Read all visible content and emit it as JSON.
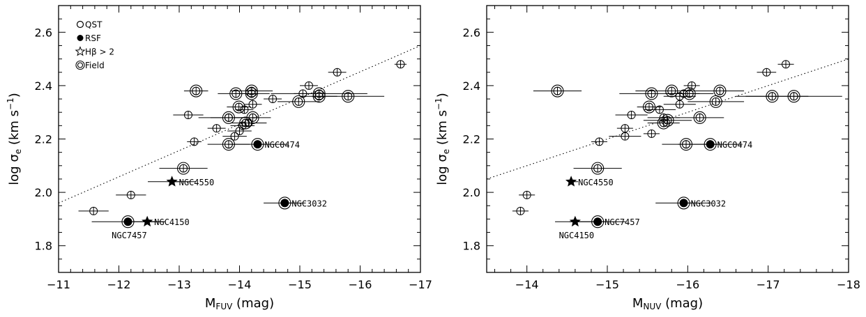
{
  "chart_data": [
    {
      "type": "scatter",
      "xlabel_main": "M",
      "xlabel_sub": "FUV",
      "xlabel_unit": " (mag)",
      "ylabel": "log σ",
      "ylabel_sub": "e",
      "ylabel_unit": " (km s",
      "ylabel_exp": "−1",
      "ylabel_close": ")",
      "xlim": [
        -11,
        -17
      ],
      "ylim": [
        1.7,
        2.7
      ],
      "xticks": [
        -11,
        -12,
        -13,
        -14,
        -15,
        -16,
        -17
      ],
      "xtick_labels": [
        "−11",
        "−12",
        "−13",
        "−14",
        "−15",
        "−16",
        "−17"
      ],
      "yticks": [
        1.8,
        2.0,
        2.2,
        2.4,
        2.6
      ],
      "ytick_labels": [
        "1.8",
        "2.0",
        "2.2",
        "2.4",
        "2.6"
      ],
      "fit_line": [
        [
          -11,
          1.96
        ],
        [
          -17,
          2.55
        ]
      ],
      "legend": [
        {
          "marker": "open",
          "label": "QST"
        },
        {
          "marker": "filled",
          "label": "RSF"
        },
        {
          "marker": "star",
          "label": "Hβ > 2"
        },
        {
          "marker": "double",
          "label": "Field"
        }
      ],
      "points": [
        {
          "x": -11.58,
          "y": 1.93,
          "xerr": 0.25,
          "marker": "cross"
        },
        {
          "x": -12.2,
          "y": 1.99,
          "xerr": 0.25,
          "marker": "cross"
        },
        {
          "x": -13.15,
          "y": 2.29,
          "xerr": 0.25,
          "marker": "cross"
        },
        {
          "x": -13.25,
          "y": 2.19,
          "xerr": 0.12,
          "marker": "cross"
        },
        {
          "x": -13.62,
          "y": 2.24,
          "xerr": 0.15,
          "marker": "cross"
        },
        {
          "x": -13.82,
          "y": 2.28,
          "xerr": 0.5,
          "marker": "cross"
        },
        {
          "x": -13.92,
          "y": 2.21,
          "xerr": 0.2,
          "marker": "cross"
        },
        {
          "x": -14.0,
          "y": 2.23,
          "xerr": 0.2,
          "marker": "cross"
        },
        {
          "x": -14.05,
          "y": 2.25,
          "xerr": 0.2,
          "marker": "cross"
        },
        {
          "x": -14.15,
          "y": 2.26,
          "xerr": 0.3,
          "marker": "cross"
        },
        {
          "x": -14.22,
          "y": 2.33,
          "xerr": 0.15,
          "marker": "cross"
        },
        {
          "x": -14.08,
          "y": 2.31,
          "xerr": 0.15,
          "marker": "cross"
        },
        {
          "x": -14.55,
          "y": 2.35,
          "xerr": 0.15,
          "marker": "cross"
        },
        {
          "x": -15.05,
          "y": 2.37,
          "xerr": 0.15,
          "marker": "cross"
        },
        {
          "x": -15.15,
          "y": 2.4,
          "xerr": 0.15,
          "marker": "cross"
        },
        {
          "x": -15.62,
          "y": 2.45,
          "xerr": 0.15,
          "marker": "cross"
        },
        {
          "x": -16.67,
          "y": 2.48,
          "xerr": 0.1,
          "marker": "cross"
        },
        {
          "x": -13.28,
          "y": 2.38,
          "xerr": 0.2,
          "marker": "double"
        },
        {
          "x": -13.94,
          "y": 2.37,
          "xerr": 0.3,
          "marker": "double"
        },
        {
          "x": -14.2,
          "y": 2.38,
          "xerr": 0.35,
          "marker": "double"
        },
        {
          "x": -14.2,
          "y": 2.37,
          "xerr": 0.3,
          "marker": "double"
        },
        {
          "x": -13.99,
          "y": 2.32,
          "xerr": 0.2,
          "marker": "double"
        },
        {
          "x": -13.82,
          "y": 2.28,
          "xerr": 0.3,
          "marker": "double"
        },
        {
          "x": -14.22,
          "y": 2.28,
          "xerr": 0.3,
          "marker": "double"
        },
        {
          "x": -14.1,
          "y": 2.26,
          "xerr": 0.25,
          "marker": "double"
        },
        {
          "x": -14.98,
          "y": 2.34,
          "xerr": 0.35,
          "marker": "double"
        },
        {
          "x": -15.32,
          "y": 2.37,
          "xerr": 0.8,
          "marker": "double"
        },
        {
          "x": -15.32,
          "y": 2.36,
          "xerr": 0.3,
          "marker": "double"
        },
        {
          "x": -15.8,
          "y": 2.36,
          "xerr": 0.6,
          "marker": "double"
        },
        {
          "x": -13.82,
          "y": 2.18,
          "xerr": 0.35,
          "marker": "double"
        },
        {
          "x": -13.07,
          "y": 2.09,
          "xerr": 0.4,
          "marker": "double"
        },
        {
          "x": -14.3,
          "y": 2.18,
          "xerr": 0.5,
          "marker": "filled",
          "label": "NGC0474"
        },
        {
          "x": -12.88,
          "y": 2.04,
          "xerr": 0.4,
          "marker": "star",
          "label": "NGC4550"
        },
        {
          "x": -14.75,
          "y": 1.96,
          "xerr": 0.35,
          "marker": "filled",
          "label": "NGC3032"
        },
        {
          "x": -12.15,
          "y": 1.89,
          "xerr": 0.6,
          "marker": "filled",
          "label": "NGC7457",
          "label_below": true
        },
        {
          "x": -12.47,
          "y": 1.89,
          "xerr": 0.3,
          "marker": "star",
          "label": "NGC4150"
        }
      ]
    },
    {
      "type": "scatter",
      "xlabel_main": "M",
      "xlabel_sub": "NUV",
      "xlabel_unit": " (mag)",
      "ylabel": "log σ",
      "ylabel_sub": "e",
      "ylabel_unit": " (km s",
      "ylabel_exp": "−1",
      "ylabel_close": ")",
      "xlim": [
        -13.5,
        -18
      ],
      "ylim": [
        1.7,
        2.7
      ],
      "xticks": [
        -14,
        -15,
        -16,
        -17,
        -18
      ],
      "xtick_labels": [
        "−14",
        "−15",
        "−16",
        "−17",
        "−18"
      ],
      "yticks": [
        1.8,
        2.0,
        2.2,
        2.4,
        2.6
      ],
      "ytick_labels": [
        "1.8",
        "2.0",
        "2.2",
        "2.4",
        "2.6"
      ],
      "fit_line": [
        [
          -13.5,
          2.05
        ],
        [
          -18,
          2.5
        ]
      ],
      "points": [
        {
          "x": -13.92,
          "y": 1.93,
          "xerr": 0.1,
          "marker": "cross"
        },
        {
          "x": -14.0,
          "y": 1.99,
          "xerr": 0.1,
          "marker": "cross"
        },
        {
          "x": -14.9,
          "y": 2.19,
          "xerr": 0.1,
          "marker": "cross"
        },
        {
          "x": -15.22,
          "y": 2.21,
          "xerr": 0.2,
          "marker": "cross"
        },
        {
          "x": -15.22,
          "y": 2.24,
          "xerr": 0.1,
          "marker": "cross"
        },
        {
          "x": -15.3,
          "y": 2.29,
          "xerr": 0.2,
          "marker": "cross"
        },
        {
          "x": -15.55,
          "y": 2.22,
          "xerr": 0.1,
          "marker": "cross"
        },
        {
          "x": -15.65,
          "y": 2.31,
          "xerr": 0.2,
          "marker": "cross"
        },
        {
          "x": -15.7,
          "y": 2.28,
          "xerr": 0.2,
          "marker": "cross"
        },
        {
          "x": -15.9,
          "y": 2.33,
          "xerr": 0.2,
          "marker": "cross"
        },
        {
          "x": -15.9,
          "y": 2.36,
          "xerr": 0.2,
          "marker": "cross"
        },
        {
          "x": -15.95,
          "y": 2.37,
          "xerr": 0.2,
          "marker": "cross"
        },
        {
          "x": -16.05,
          "y": 2.4,
          "xerr": 0.1,
          "marker": "cross"
        },
        {
          "x": -16.98,
          "y": 2.45,
          "xerr": 0.12,
          "marker": "cross"
        },
        {
          "x": -17.22,
          "y": 2.48,
          "xerr": 0.1,
          "marker": "cross"
        },
        {
          "x": -14.38,
          "y": 2.38,
          "xerr": 0.3,
          "marker": "double"
        },
        {
          "x": -15.55,
          "y": 2.37,
          "xerr": 0.4,
          "marker": "double"
        },
        {
          "x": -15.8,
          "y": 2.38,
          "xerr": 0.45,
          "marker": "double"
        },
        {
          "x": -16.4,
          "y": 2.38,
          "xerr": 0.3,
          "marker": "double"
        },
        {
          "x": -16.02,
          "y": 2.37,
          "xerr": 0.3,
          "marker": "double"
        },
        {
          "x": -15.52,
          "y": 2.32,
          "xerr": 0.15,
          "marker": "double"
        },
        {
          "x": -16.35,
          "y": 2.34,
          "xerr": 0.35,
          "marker": "double"
        },
        {
          "x": -15.7,
          "y": 2.26,
          "xerr": 0.2,
          "marker": "double"
        },
        {
          "x": -15.75,
          "y": 2.27,
          "xerr": 0.3,
          "marker": "double"
        },
        {
          "x": -16.15,
          "y": 2.28,
          "xerr": 0.3,
          "marker": "double"
        },
        {
          "x": -17.05,
          "y": 2.36,
          "xerr": 0.45,
          "marker": "double"
        },
        {
          "x": -17.32,
          "y": 2.36,
          "xerr": 0.6,
          "marker": "double"
        },
        {
          "x": -15.98,
          "y": 2.18,
          "xerr": 0.3,
          "marker": "double"
        },
        {
          "x": -14.88,
          "y": 2.09,
          "xerr": 0.3,
          "marker": "double"
        },
        {
          "x": -16.28,
          "y": 2.18,
          "xerr": 0.4,
          "marker": "filled",
          "label": "NGC0474"
        },
        {
          "x": -14.55,
          "y": 2.04,
          "xerr": 0.0,
          "marker": "star",
          "label": "NGC4550"
        },
        {
          "x": -15.95,
          "y": 1.96,
          "xerr": 0.35,
          "marker": "filled",
          "label": "NGC3032"
        },
        {
          "x": -14.88,
          "y": 1.89,
          "xerr": 0.35,
          "marker": "filled",
          "label": "NGC7457"
        },
        {
          "x": -14.6,
          "y": 1.89,
          "xerr": 0.25,
          "marker": "star",
          "label": "NGC4150",
          "label_below": true
        }
      ]
    }
  ]
}
